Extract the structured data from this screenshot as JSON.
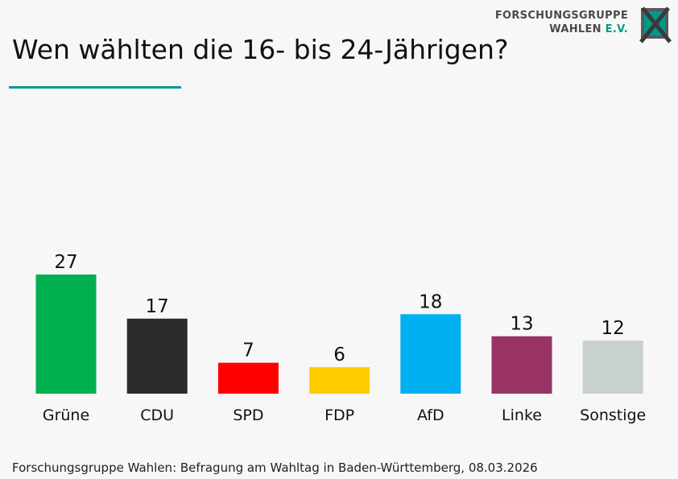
{
  "header": {
    "title": "Wen wählten die 16- bis 24-Jährigen?"
  },
  "logo": {
    "line1": "FORSCHUNGSGRUPPE",
    "line2_main": "WAHLEN ",
    "line2_accent": "E.V."
  },
  "colors": {
    "accent": "#009a8c",
    "background": "#f7f7f7"
  },
  "chart_data": {
    "type": "bar",
    "title": "Wen wählten die 16- bis 24-Jährigen?",
    "xlabel": "",
    "ylabel": "",
    "ylim": [
      0,
      27
    ],
    "categories": [
      "Grüne",
      "CDU",
      "SPD",
      "FDP",
      "AfD",
      "Linke",
      "Sonstige"
    ],
    "values": [
      27,
      17,
      7,
      6,
      18,
      13,
      12
    ],
    "colors": [
      "#00b050",
      "#2b2b2b",
      "#ff0000",
      "#ffcc00",
      "#00b0f0",
      "#993366",
      "#c8d1cd"
    ],
    "grid": false,
    "legend": "none"
  },
  "footer": {
    "source": "Forschungsgruppe Wahlen: Befragung am Wahltag in Baden-Württemberg, 08.03.2026"
  }
}
